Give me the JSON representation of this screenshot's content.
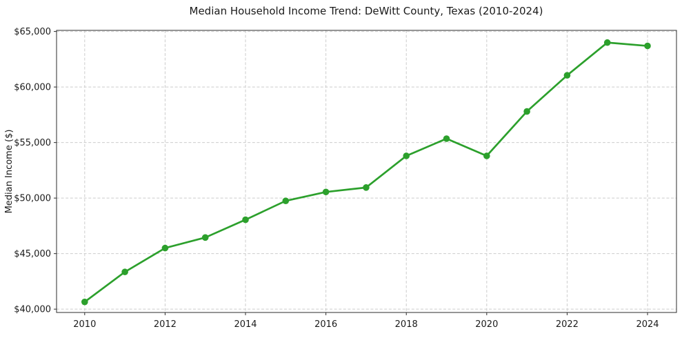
{
  "figure": {
    "background": "#ffffff"
  },
  "chart_data": {
    "type": "line",
    "title": "Median Household Income Trend: DeWitt County, Texas (2010-2024)",
    "xlabel": "",
    "ylabel": "Median Income ($)",
    "x": [
      2010,
      2011,
      2012,
      2013,
      2014,
      2015,
      2016,
      2017,
      2018,
      2019,
      2020,
      2021,
      2022,
      2023,
      2024
    ],
    "series": [
      {
        "name": "Median household income",
        "color": "#2ca02c",
        "marker": "circle",
        "values": [
          40650,
          43350,
          45500,
          46450,
          48050,
          49750,
          50550,
          50950,
          53800,
          55350,
          53800,
          57800,
          61050,
          64000,
          63700
        ]
      }
    ],
    "xlim": [
      2009.3,
      2024.72
    ],
    "ylim": [
      39700,
      65100
    ],
    "x_ticks": {
      "values": [
        2010,
        2012,
        2014,
        2016,
        2018,
        2020,
        2022,
        2024
      ],
      "labels": [
        "2010",
        "2012",
        "2014",
        "2016",
        "2018",
        "2020",
        "2022",
        "2024"
      ]
    },
    "y_ticks": {
      "values": [
        40000,
        45000,
        50000,
        55000,
        60000,
        65000
      ],
      "labels": [
        "$40,000",
        "$45,000",
        "$50,000",
        "$55,000",
        "$60,000",
        "$65,000"
      ]
    },
    "grid": {
      "show": true,
      "style": "dashed",
      "color": "#cccccc"
    },
    "axes": {
      "spine_color": "#2b2b2b",
      "tick_color": "#2b2b2b"
    },
    "legend": "none"
  }
}
